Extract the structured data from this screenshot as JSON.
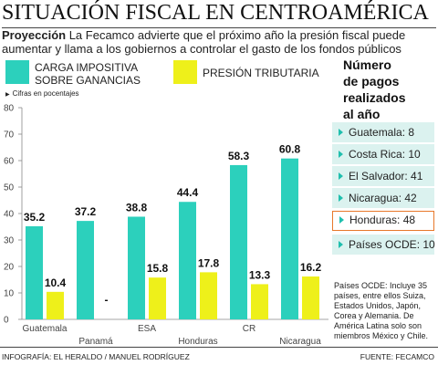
{
  "title": "SITUACIÓN FISCAL EN CENTROAMÉRICA",
  "subtitle_lead": "Proyección",
  "subtitle_text": " La Fecamco advierte que el próximo año la presión fiscal puede aumentar y llama a los gobiernos a controlar el gasto de los fondos públicos",
  "unit_note": "Cifras en pocentajes",
  "colors": {
    "teal": "#2cd0bc",
    "yellow": "#eef01a",
    "pill_bg": "#dbf2ef",
    "highlight": "#e8782a"
  },
  "chart_data": {
    "type": "bar",
    "categories": [
      "Guatemala",
      "Panamá",
      "ESA",
      "Honduras",
      "CR",
      "Nicaragua"
    ],
    "series": [
      {
        "name": "CARGA IMPOSITIVA SOBRE GANANCIAS",
        "values": [
          35.2,
          37.2,
          38.8,
          44.4,
          58.3,
          60.8
        ]
      },
      {
        "name": "PRESIÓN TRIBUTARIA",
        "values": [
          10.4,
          null,
          15.8,
          17.8,
          13.3,
          16.2
        ]
      }
    ],
    "data_labels": [
      [
        "35.2",
        "37.2",
        "38.8",
        "44.4",
        "58.3",
        "60.8"
      ],
      [
        "10.4",
        "-",
        "15.8",
        "17.8",
        "13.3",
        "16.2"
      ]
    ],
    "y_ticks": [
      "0",
      "10",
      "20",
      "30",
      "40",
      "50",
      "60",
      "70",
      "80"
    ],
    "ylim": [
      0,
      80
    ],
    "grid": false
  },
  "pagos": {
    "title_lines": [
      "Número",
      "de pagos",
      "realizados",
      "al año"
    ],
    "items": [
      {
        "label": "Guatemala: 8",
        "highlight": false
      },
      {
        "label": "Costa Rica: 10",
        "highlight": false
      },
      {
        "label": "El Salvador: 41",
        "highlight": false
      },
      {
        "label": "Nicaragua: 42",
        "highlight": false
      },
      {
        "label": "Honduras: 48",
        "highlight": true
      },
      {
        "label": "Países OCDE: 10",
        "highlight": false
      }
    ]
  },
  "footnote": "Países OCDE: Incluye 35 países, entre ellos Suiza, Estados Unidos, Japón, Corea y Alemania. De América Latina solo son miembros México y Chile.",
  "credit": "INFOGRAFÍA: EL HERALDO / MANUEL RODRÍGUEZ",
  "source": "FUENTE: FECAMCO"
}
